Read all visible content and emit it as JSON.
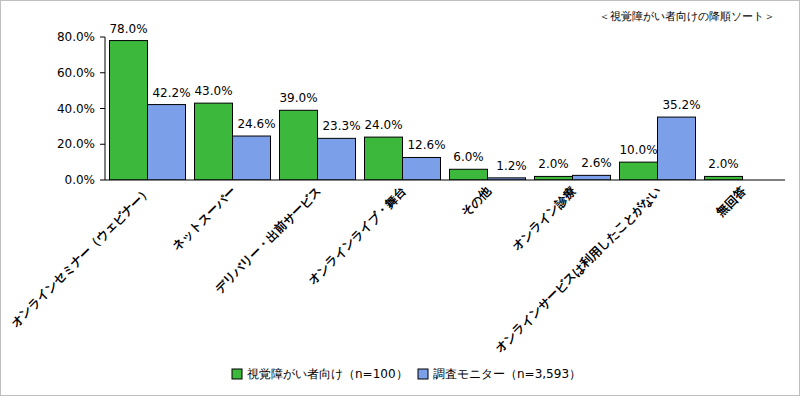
{
  "chart_data": {
    "type": "bar",
    "annotation": "＜視覚障がい者向けの降順ソート＞",
    "categories": [
      "オンラインセミナー（ウェビナー）",
      "ネットスーパー",
      "デリバリー・出前サービス",
      "オンラインライブ・舞台",
      "その他",
      "オンライン診療",
      "オンラインサービスは利用したことがない",
      "無回答"
    ],
    "series": [
      {
        "name": "視覚障がい者向け（n=100）",
        "color": "#3cb83c",
        "values": [
          78.0,
          43.0,
          39.0,
          24.0,
          6.0,
          2.0,
          10.0,
          2.0
        ],
        "value_labels": [
          "78.0%",
          "43.0%",
          "39.0%",
          "24.0%",
          "6.0%",
          "2.0%",
          "10.0%",
          "2.0%"
        ]
      },
      {
        "name": "調査モニター（n=3,593）",
        "color": "#7b9fe8",
        "values": [
          42.2,
          24.6,
          23.3,
          12.6,
          1.2,
          2.6,
          35.2,
          null
        ],
        "value_labels": [
          "42.2%",
          "24.6%",
          "23.3%",
          "12.6%",
          "1.2%",
          "2.6%",
          "35.2%",
          null
        ]
      }
    ],
    "ylim": [
      0,
      80
    ],
    "yticks": [
      {
        "value": 0,
        "label": "0.0%"
      },
      {
        "value": 20,
        "label": "20.0%"
      },
      {
        "value": 40,
        "label": "40.0%"
      },
      {
        "value": 60,
        "label": "60.0%"
      },
      {
        "value": 80,
        "label": "80.0%"
      }
    ],
    "data_labels": true,
    "legend": "bottom",
    "grid": false
  }
}
